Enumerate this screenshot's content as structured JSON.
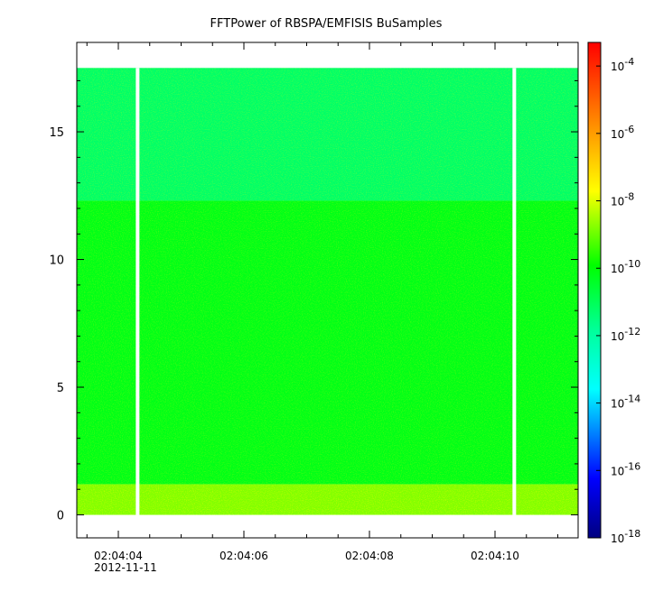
{
  "chart_data": {
    "type": "heatmap",
    "title": "FFTPower of RBSPA/EMFISIS  BuSamples",
    "xlabel": "",
    "ylabel": "",
    "x_ticks": [
      "02:04:04",
      "02:04:06",
      "02:04:08",
      "02:04:10"
    ],
    "x_date_label": "2012-11-11",
    "y_ticks": [
      0,
      5,
      10,
      15
    ],
    "ylim": [
      -0.9,
      18.5
    ],
    "colorbar": {
      "scale": "log",
      "tick_bases": [
        "10",
        "10",
        "10",
        "10",
        "10",
        "10",
        "10",
        "10"
      ],
      "tick_exponents": [
        "-4",
        "-6",
        "-8",
        "-10",
        "-12",
        "-14",
        "-16",
        "-18"
      ],
      "exponent_values": [
        -4,
        -6,
        -8,
        -10,
        -12,
        -14,
        -16,
        -18
      ],
      "range_exponent": [
        -18,
        -3.3
      ]
    },
    "data_bands": [
      {
        "y_from": 12.3,
        "y_to": 17.5,
        "log_power": -11.2
      },
      {
        "y_from": 1.2,
        "y_to": 12.3,
        "log_power": -10.2
      },
      {
        "y_from": 0.0,
        "y_to": 1.2,
        "log_power": -8.8
      }
    ],
    "gaps_at": [
      "02:04:04.3",
      "02:04:10.3"
    ],
    "grid": false
  }
}
